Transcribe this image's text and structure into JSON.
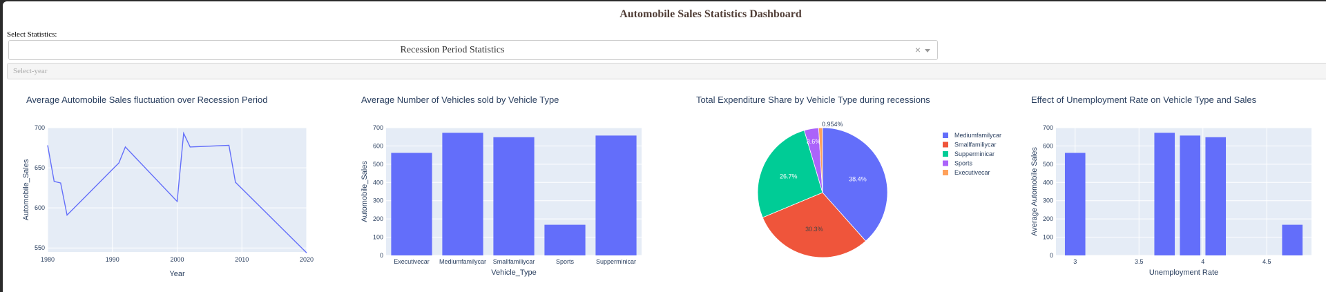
{
  "dashboard": {
    "title": "Automobile Sales Statistics Dashboard",
    "select_label": "Select Statistics:",
    "statistics_dropdown": {
      "value": "Recession Period Statistics",
      "clear_glyph": "×"
    },
    "year_dropdown": {
      "placeholder": "Select-year"
    }
  },
  "colors": {
    "plot_bg": "#e5ecf6",
    "grid": "#ffffff",
    "series": "#636efa",
    "pie": [
      "#636efa",
      "#ef553b",
      "#00cc96",
      "#ab63fa",
      "#ffa15a"
    ]
  },
  "chart_data": [
    {
      "type": "line",
      "title": "Average Automobile Sales fluctuation over Recession Period",
      "xlabel": "Year",
      "ylabel": "Automobile_Sales",
      "xlim": [
        1980,
        2020
      ],
      "ylim": [
        545,
        700
      ],
      "xticks": [
        1980,
        1990,
        2000,
        2010,
        2020
      ],
      "yticks": [
        550,
        600,
        650,
        700
      ],
      "x": [
        1980,
        1981,
        1982,
        1983,
        1990,
        1991,
        1992,
        2000,
        2001,
        2002,
        2008,
        2009,
        2020
      ],
      "y": [
        678,
        633,
        631,
        591,
        648,
        656,
        676,
        608,
        693,
        676,
        678,
        632,
        544
      ]
    },
    {
      "type": "bar",
      "title": "Average Number of Vehicles sold by Vehicle Type",
      "xlabel": "Vehicle_Type",
      "ylabel": "Automobile_Sales",
      "ylim": [
        0,
        700
      ],
      "yticks": [
        0,
        100,
        200,
        300,
        400,
        500,
        600,
        700
      ],
      "categories": [
        "Executivecar",
        "Mediumfamilycar",
        "Smallfamiliycar",
        "Sports",
        "Supperminicar"
      ],
      "values": [
        562,
        672,
        648,
        168,
        657
      ]
    },
    {
      "type": "pie",
      "title": "Total Expenditure Share by Vehicle Type during recessions",
      "legend_position": "right",
      "labels": [
        "Mediumfamilycar",
        "Smallfamiliycar",
        "Supperminicar",
        "Sports",
        "Executivecar"
      ],
      "values": [
        38.4,
        30.3,
        26.7,
        3.6,
        0.954
      ],
      "value_labels": [
        "38.4%",
        "30.3%",
        "26.7%",
        "3.6%",
        "0.954%"
      ]
    },
    {
      "type": "bar",
      "title": "Effect of Unemployment Rate on Vehicle Type and Sales",
      "xlabel": "Unemployment Rate",
      "ylabel": "Average Automobile Sales",
      "xlim": [
        2.85,
        4.85
      ],
      "ylim": [
        0,
        700
      ],
      "xticks": [
        3,
        3.5,
        4,
        4.5
      ],
      "yticks": [
        0,
        100,
        200,
        300,
        400,
        500,
        600,
        700
      ],
      "x": [
        3.0,
        3.7,
        3.9,
        4.1,
        4.7
      ],
      "values": [
        562,
        672,
        657,
        648,
        168
      ]
    }
  ]
}
